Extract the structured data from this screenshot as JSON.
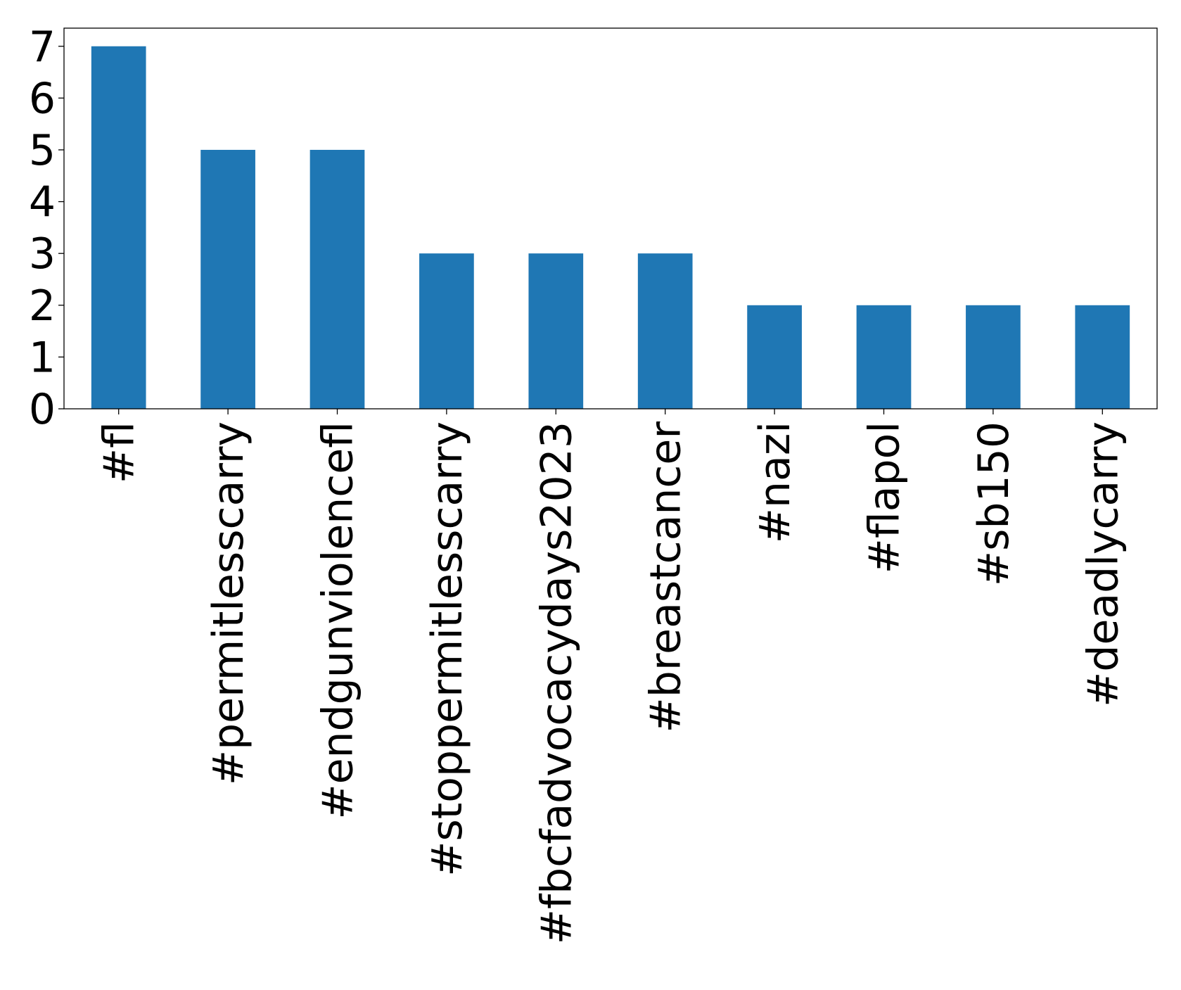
{
  "chart_data": {
    "type": "bar",
    "categories": [
      "#fl",
      "#permitlesscarry",
      "#endgunviolencefl",
      "#stoppermitlesscarry",
      "#fbcfadvocacydays2023",
      "#breastcancer",
      "#nazi",
      "#flapol",
      "#sb150",
      "#deadlycarry"
    ],
    "values": [
      7,
      5,
      5,
      3,
      3,
      3,
      2,
      2,
      2,
      2
    ],
    "ylim": [
      0,
      7.35
    ],
    "yticks": [
      "0",
      "1",
      "2",
      "3",
      "4",
      "5",
      "6",
      "7"
    ],
    "title": "",
    "xlabel": "",
    "ylabel": "",
    "bar_color": "#1f77b4",
    "grid": false,
    "legend": "none"
  }
}
